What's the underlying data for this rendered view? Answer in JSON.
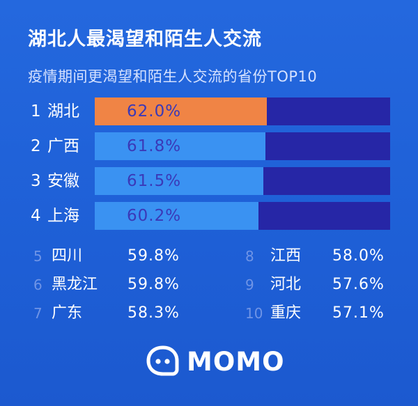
{
  "header": {
    "title": "湖北人最渴望和陌生人交流",
    "subtitle": "疫情期间更渴望和陌生人交流的省份TOP10"
  },
  "colors": {
    "background": "#1f5fd6",
    "bar_top": "#f08445",
    "bar_fill": "#3a92f2",
    "bar_track": "#2626a6",
    "value_text": "#3a39b8"
  },
  "brand": {
    "logo_icon": "momo-chat-bubble-icon",
    "name": "MOMO"
  },
  "top4": [
    {
      "rank": "1",
      "name": "湖北",
      "value_label": "62.0%"
    },
    {
      "rank": "2",
      "name": "广西",
      "value_label": "61.8%"
    },
    {
      "rank": "3",
      "name": "安徽",
      "value_label": "61.5%"
    },
    {
      "rank": "4",
      "name": "上海",
      "value_label": "60.2%"
    }
  ],
  "rest_left": [
    {
      "rank": "5",
      "name": "四川",
      "value_label": "59.8%"
    },
    {
      "rank": "6",
      "name": "黑龙江",
      "value_label": "59.8%"
    },
    {
      "rank": "7",
      "name": "广东",
      "value_label": "58.3%"
    }
  ],
  "rest_right": [
    {
      "rank": "8",
      "name": "江西",
      "value_label": "58.0%"
    },
    {
      "rank": "9",
      "name": "河北",
      "value_label": "57.6%"
    },
    {
      "rank": "10",
      "name": "重庆",
      "value_label": "57.1%"
    }
  ],
  "chart_data": {
    "type": "bar",
    "title": "湖北人最渴望和陌生人交流",
    "subtitle": "疫情期间更渴望和陌生人交流的省份TOP10",
    "categories": [
      "湖北",
      "广西",
      "安徽",
      "上海",
      "四川",
      "黑龙江",
      "广东",
      "江西",
      "河北",
      "重庆"
    ],
    "values": [
      62.0,
      61.8,
      61.5,
      60.2,
      59.8,
      59.8,
      58.3,
      58.0,
      57.6,
      57.1
    ],
    "unit": "%",
    "xlabel": "",
    "ylabel": "",
    "bar_fraction_of_track": [
      0.583,
      0.578,
      0.571,
      0.554
    ]
  }
}
